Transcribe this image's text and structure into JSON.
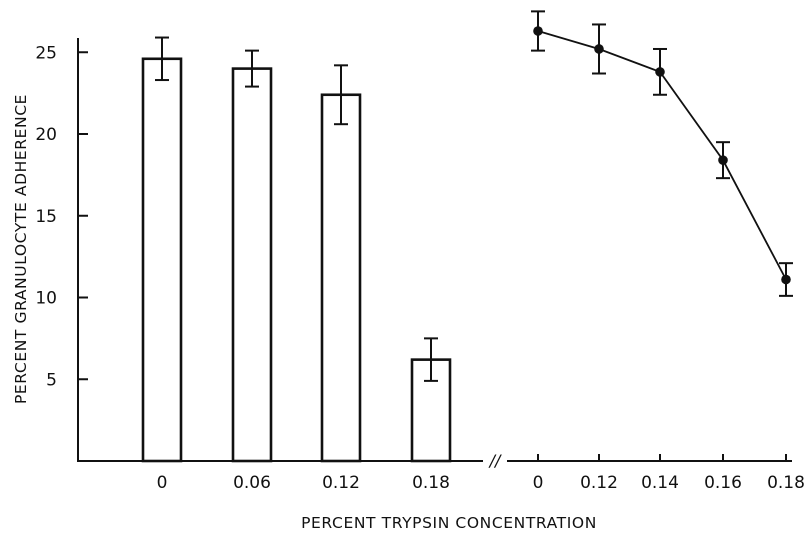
{
  "chart_data": {
    "type": "bar",
    "xlabel": "PERCENT TRYPSIN CONCENTRATION",
    "ylabel": "PERCENT GRANULOCYTE ADHERENCE",
    "ylim": [
      0,
      27.5
    ],
    "y_ticks": [
      "5",
      "10",
      "15",
      "20",
      "25"
    ],
    "grid": false,
    "axis_break_symbol": "//",
    "bars": {
      "categories": [
        "0",
        "0.06",
        "0.12",
        "0.18"
      ],
      "values": [
        24.6,
        24.0,
        22.4,
        6.2
      ],
      "errors": [
        1.3,
        1.1,
        1.8,
        1.3
      ]
    },
    "line": {
      "categories": [
        "0",
        "0.12",
        "0.14",
        "0.16",
        "0.18"
      ],
      "values": [
        26.3,
        25.2,
        23.8,
        18.4,
        11.1
      ],
      "errors": [
        1.2,
        1.5,
        1.4,
        1.1,
        1.0
      ]
    }
  }
}
